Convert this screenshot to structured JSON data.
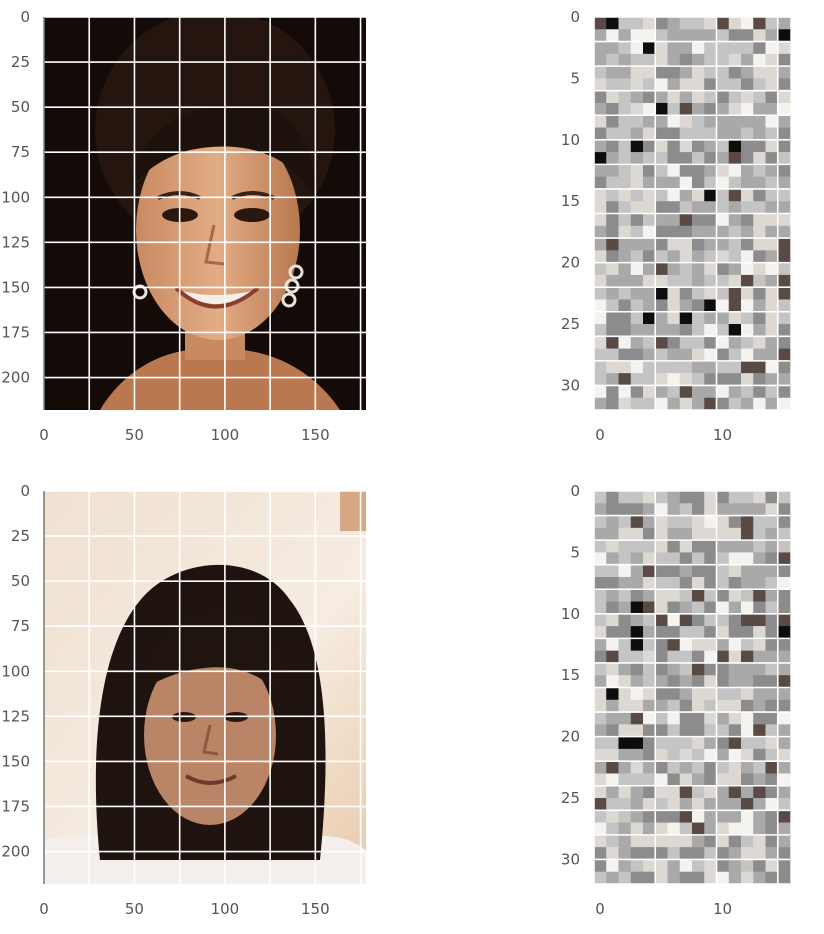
{
  "chart_data": [
    {
      "type": "heatmap",
      "content": "photo: smiling woman with dark hair, earrings, dark background",
      "palette": [
        "#1a0f0b",
        "#3a241b",
        "#7a4a30",
        "#b9784f",
        "#d49a6e",
        "#e8b98f"
      ],
      "xlim": [
        0,
        178
      ],
      "ylim": [
        218,
        0
      ],
      "xticks": [
        0,
        50,
        100,
        150
      ],
      "yticks": [
        0,
        25,
        50,
        75,
        100,
        125,
        150,
        175,
        200
      ],
      "grid": true
    },
    {
      "type": "heatmap",
      "content": "grayscale noise matrix 32 x 16",
      "palette": [
        "#0d0d0d",
        "#5a4a44",
        "#8c8c8c",
        "#a9a9a9",
        "#c4c4c4",
        "#ddd8d2",
        "#f5f3f0"
      ],
      "xlim": [
        0,
        16
      ],
      "ylim": [
        32,
        0
      ],
      "xticks": [
        0,
        10
      ],
      "yticks": [
        0,
        5,
        10,
        15,
        20,
        25,
        30
      ],
      "grid": true
    },
    {
      "type": "heatmap",
      "content": "photo: woman with dark shoulder-length hair and bangs, light background",
      "palette": [
        "#1c120f",
        "#4a2c22",
        "#8a5a45",
        "#c79a7e",
        "#e9d2bd",
        "#f3e6d8"
      ],
      "xlim": [
        0,
        178
      ],
      "ylim": [
        218,
        0
      ],
      "xticks": [
        0,
        50,
        100,
        150
      ],
      "yticks": [
        0,
        25,
        50,
        75,
        100,
        125,
        150,
        175,
        200
      ],
      "grid": true
    },
    {
      "type": "heatmap",
      "content": "grayscale noise matrix 32 x 16",
      "palette": [
        "#0d0d0d",
        "#5a4a44",
        "#8c8c8c",
        "#a9a9a9",
        "#c4c4c4",
        "#ddd8d2",
        "#f5f3f0"
      ],
      "xlim": [
        0,
        16
      ],
      "ylim": [
        32,
        0
      ],
      "xticks": [
        0,
        10
      ],
      "yticks": [
        0,
        5,
        10,
        15,
        20,
        25,
        30
      ],
      "grid": true
    }
  ]
}
